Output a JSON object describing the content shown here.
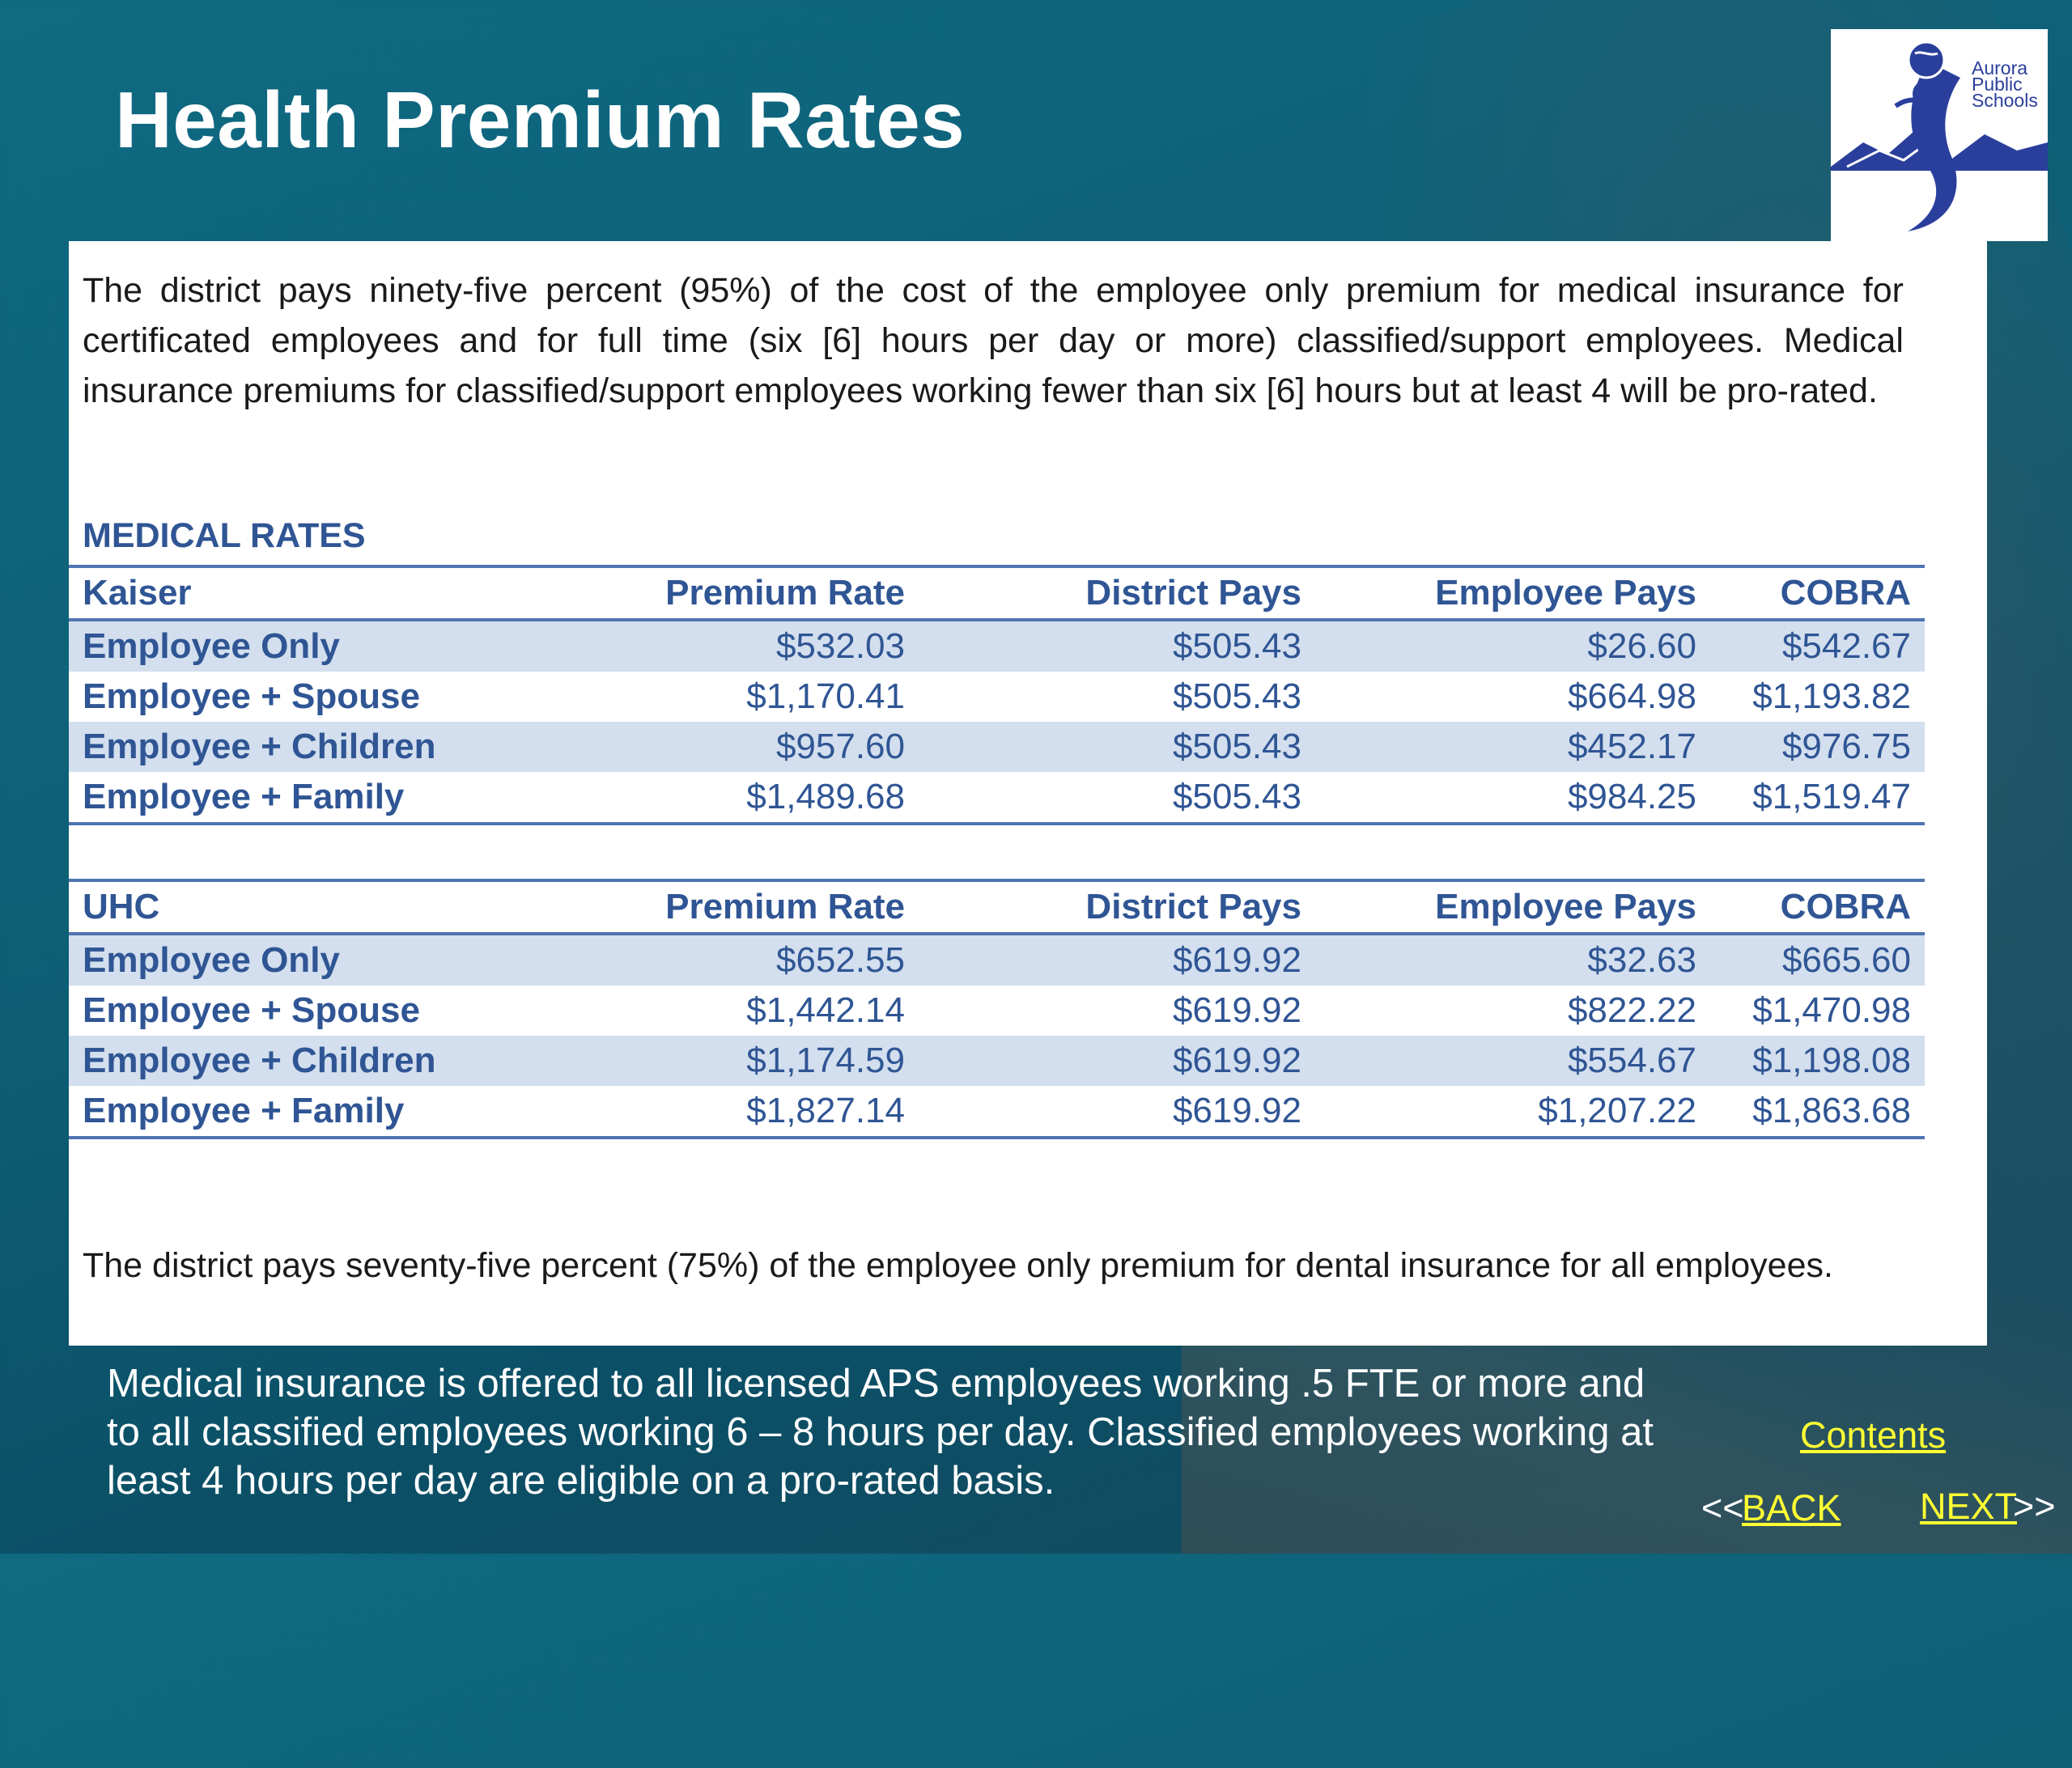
{
  "slide": {
    "title": "Health Premium Rates",
    "logo_text": [
      "Aurora",
      "Public",
      "Schools"
    ]
  },
  "intro": "The district pays ninety-five percent (95%) of the cost of the employee only premium for medical insurance for certificated employees and for full time (six [6] hours per day or more) classified/support employees. Medical insurance premiums for classified/support employees working fewer than six [6] hours but at least 4 will be pro-rated.",
  "section_title": "MEDICAL RATES",
  "kaiser": {
    "headers": [
      "Kaiser",
      "Premium Rate",
      "District Pays",
      "Employee Pays",
      "COBRA"
    ],
    "rows": [
      [
        "Employee Only",
        "$532.03",
        "$505.43",
        "$26.60",
        "$542.67"
      ],
      [
        "Employee + Spouse",
        "$1,170.41",
        "$505.43",
        "$664.98",
        "$1,193.82"
      ],
      [
        "Employee + Children",
        "$957.60",
        "$505.43",
        "$452.17",
        "$976.75"
      ],
      [
        "Employee + Family",
        "$1,489.68",
        "$505.43",
        "$984.25",
        "$1,519.47"
      ]
    ]
  },
  "uhc": {
    "headers": [
      "UHC",
      "Premium Rate",
      "District Pays",
      "Employee Pays",
      "COBRA"
    ],
    "rows": [
      [
        "Employee Only",
        "$652.55",
        "$619.92",
        "$32.63",
        "$665.60"
      ],
      [
        "Employee + Spouse",
        "$1,442.14",
        "$619.92",
        "$822.22",
        "$1,470.98"
      ],
      [
        "Employee + Children",
        "$1,174.59",
        "$619.92",
        "$554.67",
        "$1,198.08"
      ],
      [
        "Employee + Family",
        "$1,827.14",
        "$619.92",
        "$1,207.22",
        "$1,863.68"
      ]
    ]
  },
  "dental": "The district pays seventy-five percent (75%) of the employee only premium for dental insurance for all employees.",
  "footer": {
    "text": "Medical insurance is offered to all licensed APS employees working .5 FTE or more and to all classified employees working 6 – 8 hours per day. Classified employees working at least 4 hours per day are eligible on a pro-rated basis.",
    "contents": "Contents",
    "back_prefix": "<<",
    "back": "BACK",
    "next": "NEXT",
    "next_suffix": ">>"
  },
  "colors": {
    "background": "#0d5e75",
    "table_text": "#2f5594",
    "row_shade": "#d3dfee",
    "link": "#ffff33"
  }
}
